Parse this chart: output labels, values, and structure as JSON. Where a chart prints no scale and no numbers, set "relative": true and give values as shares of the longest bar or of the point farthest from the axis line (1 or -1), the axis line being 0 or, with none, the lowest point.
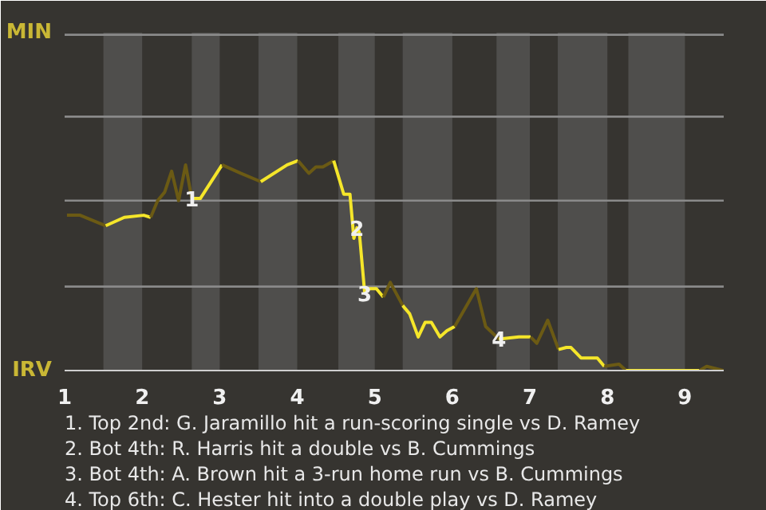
{
  "chart_data": {
    "type": "line",
    "relative": true,
    "series": [
      {
        "color": "#6b5a14",
        "x": [
          1.03,
          1.2,
          1.53
        ],
        "values": [
          0.74,
          0.74,
          0.69
        ]
      },
      {
        "color": "#f5e62a",
        "x": [
          1.53,
          1.77,
          2.02,
          2.11
        ],
        "values": [
          0.69,
          0.73,
          0.74,
          0.73
        ]
      },
      {
        "color": "#6b5a14",
        "x": [
          2.11,
          2.2,
          2.29,
          2.38,
          2.47,
          2.56,
          2.64
        ],
        "values": [
          0.73,
          0.81,
          0.85,
          0.95,
          0.81,
          0.98,
          0.82
        ]
      },
      {
        "color": "#f5e62a",
        "x": [
          2.64,
          2.75,
          3.03
        ],
        "values": [
          0.82,
          0.82,
          0.98
        ]
      },
      {
        "color": "#6b5a14",
        "x": [
          3.03,
          3.27,
          3.53
        ],
        "values": [
          0.98,
          0.94,
          0.9
        ]
      },
      {
        "color": "#f5e62a",
        "x": [
          3.53,
          3.87,
          4.01
        ],
        "values": [
          0.9,
          0.98,
          1
        ]
      },
      {
        "color": "#6b5a14",
        "x": [
          4.01,
          4.15,
          4.24,
          4.33,
          4.47
        ],
        "values": [
          1,
          0.94,
          0.97,
          0.97,
          1
        ]
      },
      {
        "color": "#f5e62a",
        "x": [
          4.47,
          4.6,
          4.68,
          4.73,
          4.77,
          4.8,
          4.87,
          4.93,
          5.02,
          5.11
        ],
        "values": [
          1,
          0.84,
          0.84,
          0.63,
          0.68,
          0.66,
          0.37,
          0.39,
          0.39,
          0.35
        ]
      },
      {
        "color": "#6b5a14",
        "x": [
          5.11,
          5.2,
          5.36
        ],
        "values": [
          0.35,
          0.42,
          0.31
        ]
      },
      {
        "color": "#f5e62a",
        "x": [
          5.36,
          5.45,
          5.56,
          5.65,
          5.73,
          5.84,
          5.93,
          6.03
        ],
        "values": [
          0.31,
          0.27,
          0.16,
          0.23,
          0.23,
          0.16,
          0.19,
          0.21
        ]
      },
      {
        "color": "#6b5a14",
        "x": [
          6.03,
          6.31,
          6.43,
          6.6
        ],
        "values": [
          0.21,
          0.39,
          0.21,
          0.15
        ]
      },
      {
        "color": "#f5e62a",
        "x": [
          6.6,
          6.86,
          7.01
        ],
        "values": [
          0.15,
          0.16,
          0.16
        ]
      },
      {
        "color": "#6b5a14",
        "x": [
          7.01,
          7.09,
          7.23,
          7.37
        ],
        "values": [
          0.16,
          0.13,
          0.24,
          0.1
        ]
      },
      {
        "color": "#f5e62a",
        "x": [
          7.37,
          7.47,
          7.53,
          7.66,
          7.87,
          7.96
        ],
        "values": [
          0.1,
          0.11,
          0.11,
          0.06,
          0.06,
          0.02
        ]
      },
      {
        "color": "#6b5a14",
        "x": [
          7.96,
          8.15,
          8.24
        ],
        "values": [
          0.02,
          0.03,
          0
        ]
      },
      {
        "color": "#f5e62a",
        "x": [
          8.24,
          9.19
        ],
        "values": [
          0,
          0
        ]
      },
      {
        "color": "#6b5a14",
        "x": [
          9.19,
          9.28,
          9.5
        ],
        "values": [
          0,
          0.02,
          0
        ]
      }
    ],
    "xlim": [
      1,
      9.5
    ],
    "xticks": [
      1,
      2,
      3,
      4,
      5,
      6,
      7,
      8,
      9
    ],
    "ref_lines": [
      {
        "axis": "y",
        "value": 0.4,
        "color": "#8a8a8a"
      },
      {
        "axis": "y",
        "value": 0.81,
        "color": "#8a8a8a"
      },
      {
        "axis": "y",
        "value": 1.21,
        "color": "#8a8a8a"
      },
      {
        "axis": "y",
        "value": 1.6,
        "color": "#8a8a8a"
      }
    ],
    "bands": [
      {
        "axis": "x",
        "from": 1.5,
        "to": 2,
        "color": "#4f4e4c"
      },
      {
        "axis": "x",
        "from": 2.64,
        "to": 3,
        "color": "#4f4e4c"
      },
      {
        "axis": "x",
        "from": 3.5,
        "to": 4,
        "color": "#4f4e4c"
      },
      {
        "axis": "x",
        "from": 4.53,
        "to": 5,
        "color": "#4f4e4c"
      },
      {
        "axis": "x",
        "from": 5.36,
        "to": 6,
        "color": "#4f4e4c"
      },
      {
        "axis": "x",
        "from": 6.57,
        "to": 7,
        "color": "#4f4e4c"
      },
      {
        "axis": "x",
        "from": 7.36,
        "to": 8,
        "color": "#4f4e4c"
      },
      {
        "axis": "x",
        "from": 8.27,
        "to": 9,
        "color": "#4f4e4c"
      }
    ],
    "annotations": [
      "MIN",
      "IRV",
      {
        "text": "1",
        "x": 2.64,
        "y": 0.82
      },
      {
        "text": "2",
        "x": 4.77,
        "y": 0.68
      },
      {
        "text": "3",
        "x": 4.87,
        "y": 0.37
      },
      {
        "text": "4",
        "x": 6.6,
        "y": 0.15
      },
      "1. Top 2nd: G. Jaramillo hit a run-scoring single vs D. Ramey",
      "2. Bot 4th: R. Harris hit a double vs B. Cummings",
      "3. Bot 4th: A. Brown hit a 3-run home run vs B. Cummings",
      "4. Top 6th: C. Hester hit into a double play vs D. Ramey"
    ]
  }
}
